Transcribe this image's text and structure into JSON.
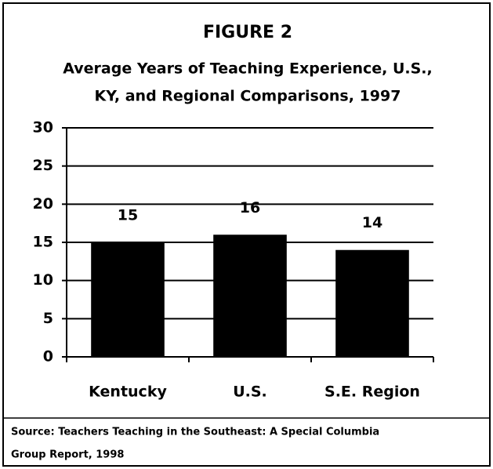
{
  "chart_data": {
    "type": "bar",
    "title": "FIGURE 2",
    "subtitle": [
      "Average Years of Teaching Experience, U.S.,",
      "KY, and Regional Comparisons, 1997"
    ],
    "categories": [
      "Kentucky",
      "U.S.",
      "S.E. Region"
    ],
    "values": [
      15,
      16,
      14
    ],
    "color": "#000000",
    "ylim": [
      0,
      30
    ],
    "yticks": [
      0,
      5,
      10,
      15,
      20,
      25,
      30
    ],
    "grid": true,
    "source": [
      "Source:  Teachers Teaching in the Southeast: A Special Columbia",
      "Group Report, 1998"
    ]
  }
}
